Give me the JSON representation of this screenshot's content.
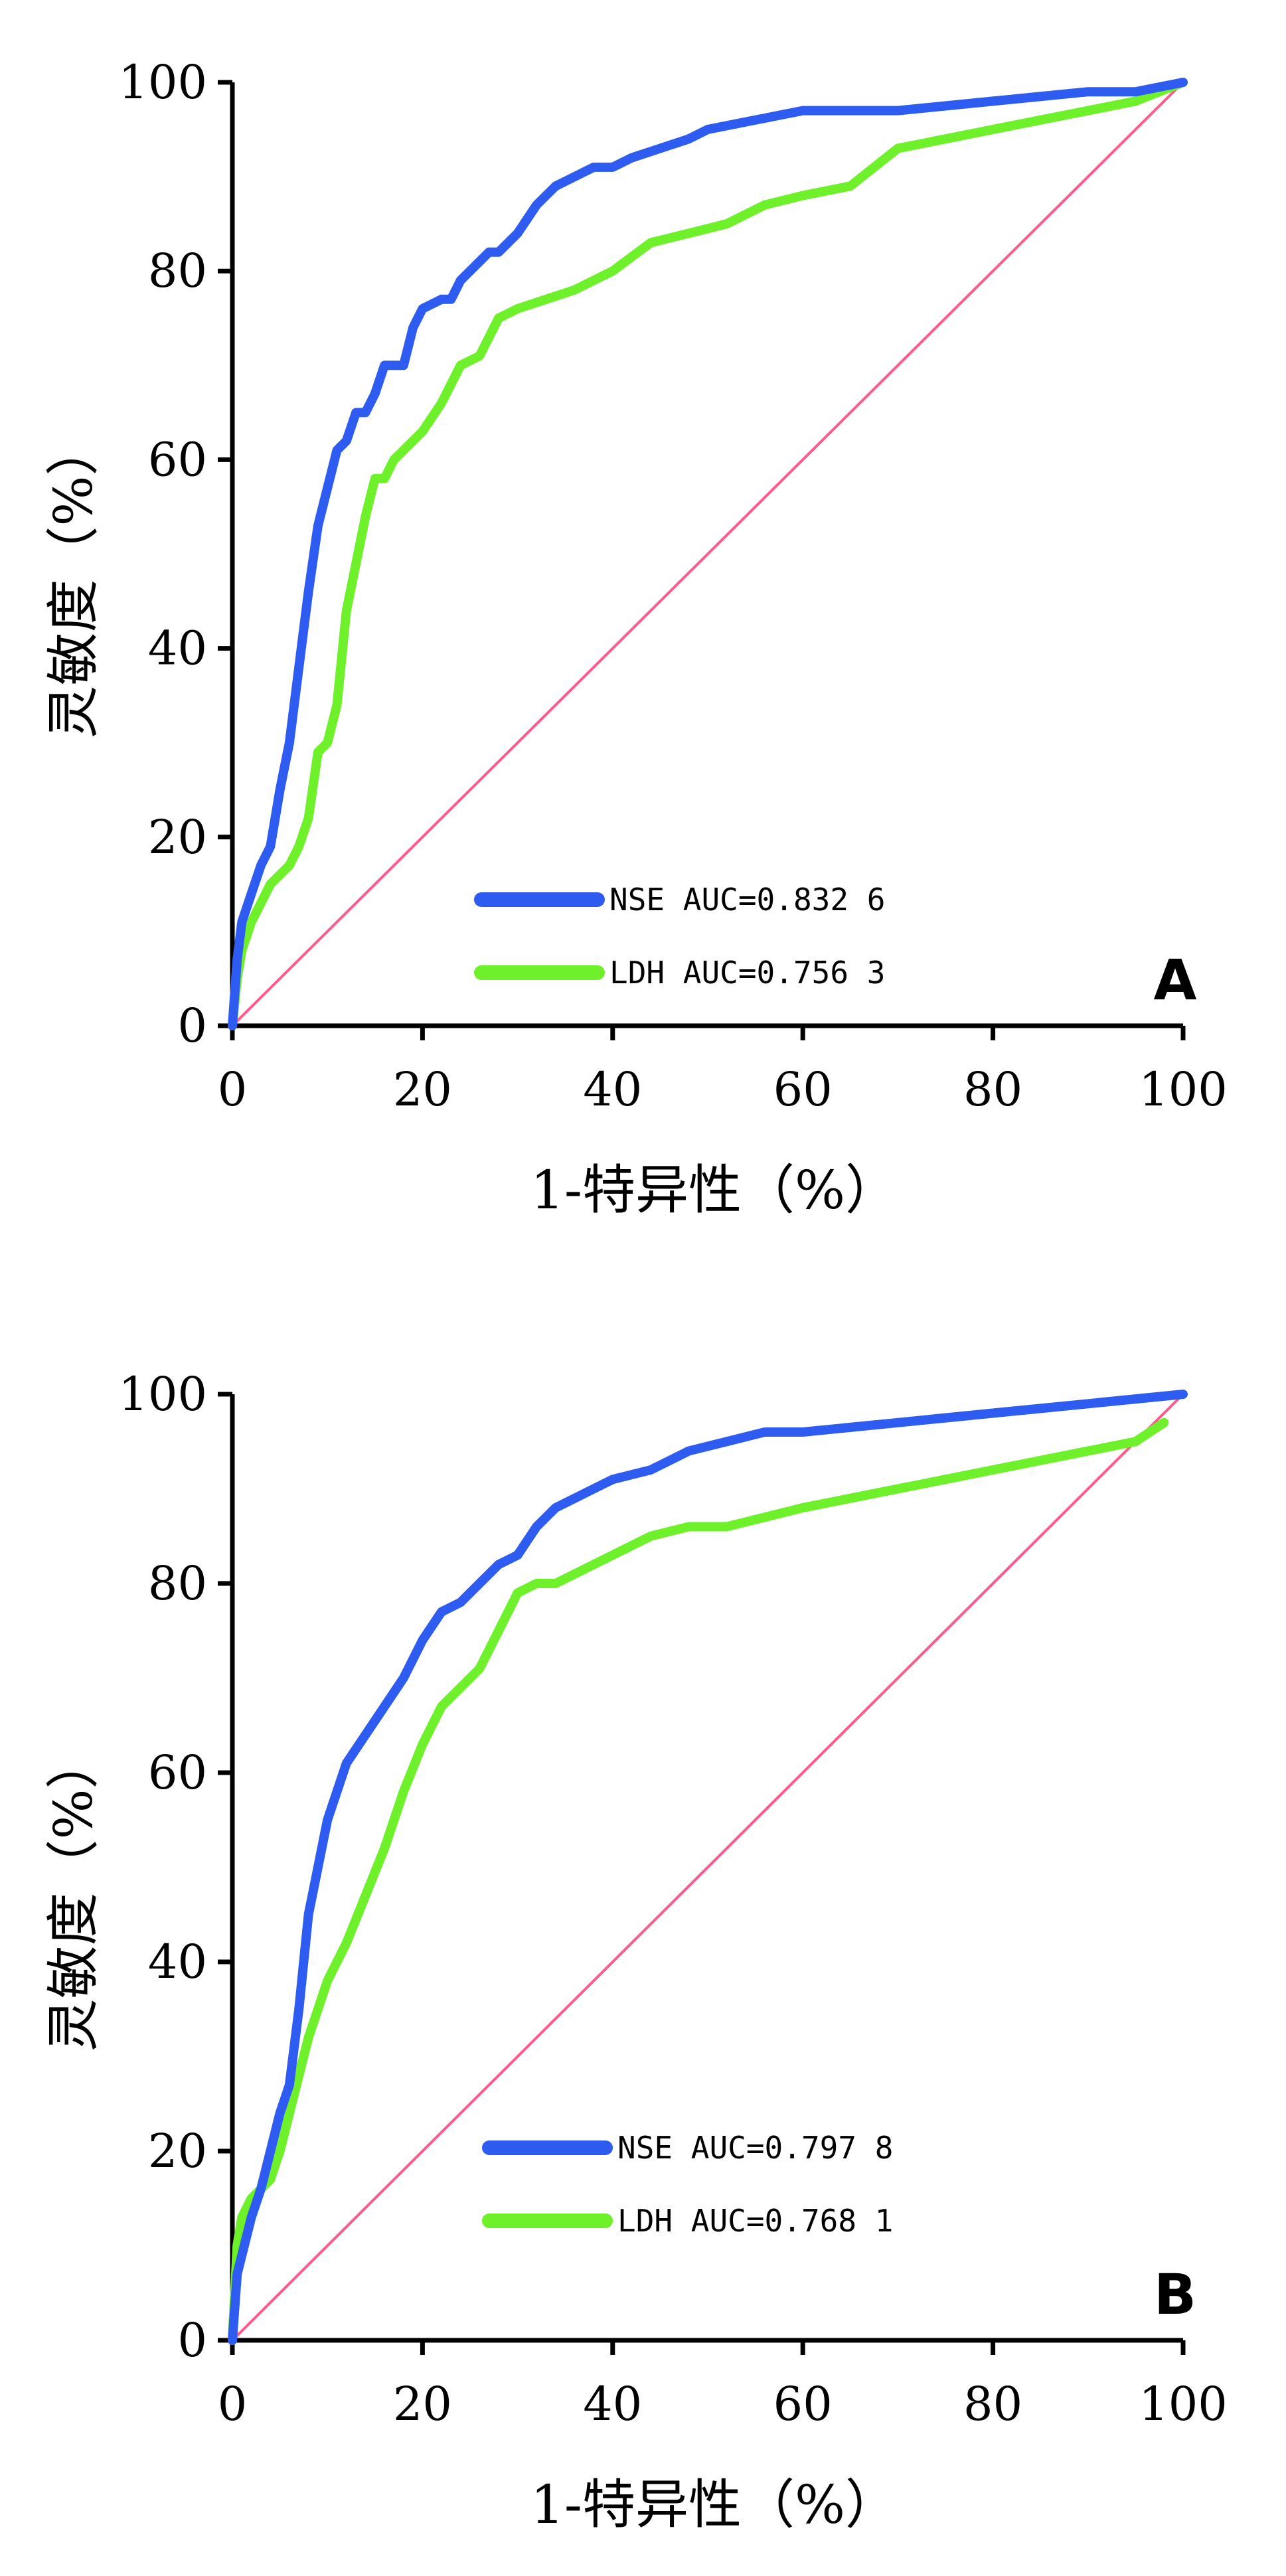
{
  "chart_data": [
    {
      "type": "line",
      "panel_label": "A",
      "xlabel": "1-特异性（%）",
      "ylabel": "灵敏度（%）",
      "xlim": [
        0,
        100
      ],
      "ylim": [
        0,
        100
      ],
      "xticks": [
        "0",
        "20",
        "40",
        "60",
        "80",
        "100"
      ],
      "yticks": [
        "0",
        "20",
        "40",
        "60",
        "80",
        "100"
      ],
      "legend_position": "bottom-center",
      "reference_line": {
        "x": [
          0,
          100
        ],
        "y": [
          0,
          100
        ],
        "color": "#ff5a8c"
      },
      "series": [
        {
          "name": "NSE AUC=0.832 6",
          "color": "#2f5cf0",
          "x": [
            0,
            0.5,
            1,
            2,
            3,
            4,
            5,
            6,
            7,
            8,
            9,
            10,
            11,
            12,
            13,
            14,
            15,
            16,
            18,
            19,
            20,
            22,
            23,
            24,
            26,
            27,
            28,
            30,
            32,
            34,
            36,
            38,
            40,
            42,
            45,
            48,
            50,
            55,
            60,
            65,
            70,
            80,
            90,
            95,
            100
          ],
          "y": [
            0,
            7,
            11,
            14,
            17,
            19,
            25,
            30,
            38,
            46,
            53,
            57,
            61,
            62,
            65,
            65,
            67,
            70,
            70,
            74,
            76,
            77,
            77,
            79,
            81,
            82,
            82,
            84,
            87,
            89,
            90,
            91,
            91,
            92,
            93,
            94,
            95,
            96,
            97,
            97,
            97,
            98,
            99,
            99,
            100
          ]
        },
        {
          "name": "LDH AUC=0.756 3",
          "color": "#6ef02a",
          "x": [
            0,
            0.5,
            1,
            2,
            3,
            4,
            5,
            6,
            7,
            8,
            9,
            10,
            11,
            12,
            13,
            14,
            15,
            16,
            17,
            18,
            20,
            22,
            24,
            26,
            28,
            30,
            33,
            36,
            40,
            44,
            48,
            52,
            56,
            60,
            65,
            70,
            75,
            80,
            85,
            90,
            95,
            100
          ],
          "y": [
            0,
            5,
            8,
            11,
            13,
            15,
            16,
            17,
            19,
            22,
            29,
            30,
            34,
            44,
            49,
            54,
            58,
            58,
            60,
            61,
            63,
            66,
            70,
            71,
            75,
            76,
            77,
            78,
            80,
            83,
            84,
            85,
            87,
            88,
            89,
            93,
            94,
            95,
            96,
            97,
            98,
            100
          ]
        }
      ]
    },
    {
      "type": "line",
      "panel_label": "B",
      "xlabel": "1-特异性（%）",
      "ylabel": "灵敏度（%）",
      "xlim": [
        0,
        100
      ],
      "ylim": [
        0,
        100
      ],
      "xticks": [
        "0",
        "20",
        "40",
        "60",
        "80",
        "100"
      ],
      "yticks": [
        "0",
        "20",
        "40",
        "60",
        "80",
        "100"
      ],
      "legend_position": "bottom-center",
      "reference_line": {
        "x": [
          0,
          100
        ],
        "y": [
          0,
          100
        ],
        "color": "#ff5a8c"
      },
      "series": [
        {
          "name": "NSE AUC=0.797 8",
          "color": "#2f5cf0",
          "x": [
            0,
            0.5,
            1,
            2,
            3,
            4,
            5,
            6,
            7,
            8,
            9,
            10,
            11,
            12,
            14,
            16,
            18,
            20,
            22,
            24,
            26,
            28,
            30,
            32,
            34,
            36,
            38,
            40,
            44,
            48,
            52,
            56,
            60,
            70,
            80,
            90,
            100
          ],
          "y": [
            0,
            7,
            9,
            13,
            16,
            20,
            24,
            27,
            35,
            45,
            50,
            55,
            58,
            61,
            64,
            67,
            70,
            74,
            77,
            78,
            80,
            82,
            83,
            86,
            88,
            89,
            90,
            91,
            92,
            94,
            95,
            96,
            96,
            97,
            98,
            99,
            100
          ]
        },
        {
          "name": "LDH AUC=0.768 1",
          "color": "#6ef02a",
          "x": [
            0,
            0.5,
            1,
            2,
            3,
            4,
            5,
            6,
            7,
            8,
            9,
            10,
            12,
            14,
            16,
            18,
            20,
            22,
            24,
            26,
            28,
            30,
            32,
            34,
            36,
            38,
            40,
            44,
            48,
            52,
            56,
            60,
            65,
            70,
            75,
            80,
            85,
            90,
            95,
            98
          ],
          "y": [
            0,
            10,
            13,
            15,
            16,
            17,
            20,
            24,
            28,
            32,
            35,
            38,
            42,
            47,
            52,
            58,
            63,
            67,
            69,
            71,
            75,
            79,
            80,
            80,
            81,
            82,
            83,
            85,
            86,
            86,
            87,
            88,
            89,
            90,
            91,
            92,
            93,
            94,
            95,
            97
          ]
        }
      ]
    }
  ]
}
